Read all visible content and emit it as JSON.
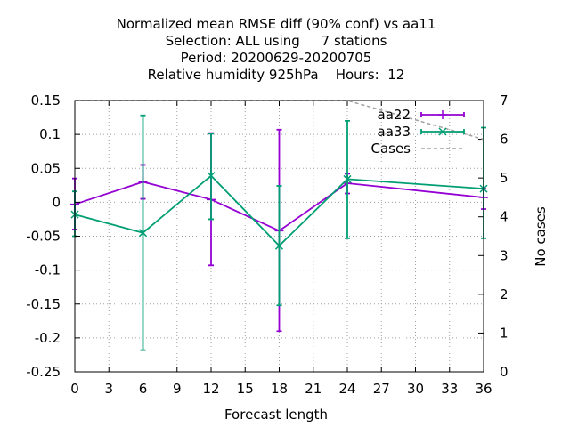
{
  "title_lines": [
    "Normalized mean RMSE diff (90% conf) vs aa11",
    "Selection: ALL using     7 stations",
    "Period: 20200629-20200705",
    "Relative humidity 925hPa    Hours:  12"
  ],
  "chart_data": {
    "type": "line",
    "xlabel": "Forecast length",
    "ylabel": "",
    "y2label": "No cases",
    "xlim": [
      0,
      36
    ],
    "ylim": [
      -0.25,
      0.15
    ],
    "y2lim": [
      0,
      7
    ],
    "xticks": [
      "0",
      "3",
      "6",
      "9",
      "12",
      "15",
      "18",
      "21",
      "24",
      "27",
      "30",
      "33",
      "36"
    ],
    "yticks": [
      "0.15",
      "0.1",
      "0.05",
      "0",
      "-0.05",
      "-0.1",
      "-0.15",
      "-0.2",
      "-0.25"
    ],
    "y2ticks": [
      "7",
      "6",
      "5",
      "4",
      "3",
      "2",
      "1",
      "0"
    ],
    "grid": true,
    "legend_position": "top-right",
    "series": [
      {
        "name": "aa22",
        "color": "#9400d3",
        "marker": "plus",
        "x": [
          0,
          6,
          12,
          18,
          24,
          36
        ],
        "y": [
          -0.003,
          0.03,
          0.004,
          -0.042,
          0.028,
          0.007
        ],
        "err_low": [
          -0.04,
          0.005,
          -0.093,
          -0.19,
          0.013,
          -0.01
        ],
        "err_high": [
          0.035,
          0.055,
          0.102,
          0.107,
          0.042,
          0.02
        ]
      },
      {
        "name": "aa33",
        "color": "#009e73",
        "marker": "x",
        "x": [
          0,
          6,
          12,
          18,
          24,
          36
        ],
        "y": [
          -0.018,
          -0.045,
          0.039,
          -0.064,
          0.034,
          0.02
        ],
        "err_low": [
          -0.05,
          -0.218,
          -0.025,
          -0.152,
          -0.053,
          -0.053
        ],
        "err_high": [
          0.016,
          0.128,
          0.101,
          0.024,
          0.12,
          0.11
        ]
      },
      {
        "name": "Cases",
        "color": "#a0a0a0",
        "marker": "none",
        "dashed": true,
        "axis": "y2",
        "x": [
          0,
          6,
          12,
          18,
          24,
          36
        ],
        "y": [
          7,
          7,
          7,
          7,
          7,
          6
        ]
      }
    ]
  }
}
